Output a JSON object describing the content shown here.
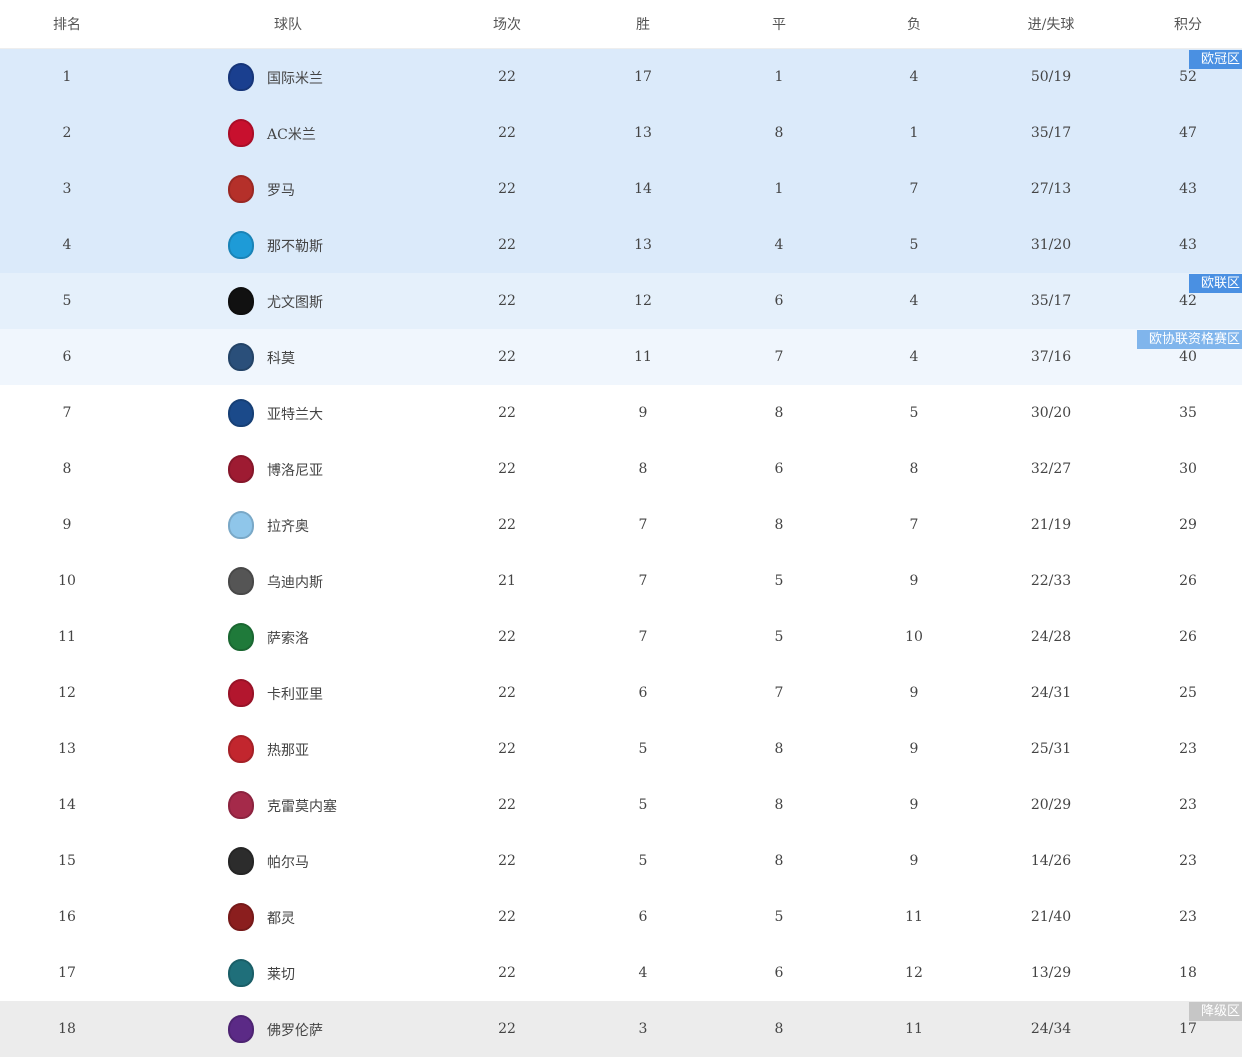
{
  "headers": [
    "排名",
    "球队",
    "场次",
    "胜",
    "平",
    "负",
    "进/失球",
    "积分"
  ],
  "zones": {
    "ucl": {
      "label": "欧冠区",
      "bg": "#dbeafa",
      "badge": "#4a90e2"
    },
    "uel": {
      "label": "欧联区",
      "bg": "#e5f0fb",
      "badge": "#4a90e2"
    },
    "uecl": {
      "label": "欧协联资格赛区",
      "bg": "#f0f6fd",
      "badge": "#80b5ec"
    },
    "rel": {
      "label": "降级区",
      "bg": "#ececec",
      "badge": "#c6c6c6"
    }
  },
  "rows": [
    {
      "rank": "1",
      "team": "国际米兰",
      "played": "22",
      "w": "17",
      "d": "1",
      "l": "4",
      "gf_ga": "50/19",
      "pts": "52",
      "zone": "ucl",
      "logo": "#1a3f8f"
    },
    {
      "rank": "2",
      "team": "AC米兰",
      "played": "22",
      "w": "13",
      "d": "8",
      "l": "1",
      "gf_ga": "35/17",
      "pts": "47",
      "zone": "ucl",
      "logo": "#c8102e"
    },
    {
      "rank": "3",
      "team": "罗马",
      "played": "22",
      "w": "14",
      "d": "1",
      "l": "7",
      "gf_ga": "27/13",
      "pts": "43",
      "zone": "ucl",
      "logo": "#b5302a"
    },
    {
      "rank": "4",
      "team": "那不勒斯",
      "played": "22",
      "w": "13",
      "d": "4",
      "l": "5",
      "gf_ga": "31/20",
      "pts": "43",
      "zone": "ucl",
      "logo": "#1e9bd7"
    },
    {
      "rank": "5",
      "team": "尤文图斯",
      "played": "22",
      "w": "12",
      "d": "6",
      "l": "4",
      "gf_ga": "35/17",
      "pts": "42",
      "zone": "uel",
      "logo": "#111111"
    },
    {
      "rank": "6",
      "team": "科莫",
      "played": "22",
      "w": "11",
      "d": "7",
      "l": "4",
      "gf_ga": "37/16",
      "pts": "40",
      "zone": "uecl",
      "logo": "#2a4f7a"
    },
    {
      "rank": "7",
      "team": "亚特兰大",
      "played": "22",
      "w": "9",
      "d": "8",
      "l": "5",
      "gf_ga": "30/20",
      "pts": "35",
      "logo": "#1b4a8a"
    },
    {
      "rank": "8",
      "team": "博洛尼亚",
      "played": "22",
      "w": "8",
      "d": "6",
      "l": "8",
      "gf_ga": "32/27",
      "pts": "30",
      "logo": "#9e1b32"
    },
    {
      "rank": "9",
      "team": "拉齐奥",
      "played": "22",
      "w": "7",
      "d": "8",
      "l": "7",
      "gf_ga": "21/19",
      "pts": "29",
      "logo": "#8fc6ea"
    },
    {
      "rank": "10",
      "team": "乌迪内斯",
      "played": "21",
      "w": "7",
      "d": "5",
      "l": "9",
      "gf_ga": "22/33",
      "pts": "26",
      "logo": "#555555"
    },
    {
      "rank": "11",
      "team": "萨索洛",
      "played": "22",
      "w": "7",
      "d": "5",
      "l": "10",
      "gf_ga": "24/28",
      "pts": "26",
      "logo": "#1f7a3a"
    },
    {
      "rank": "12",
      "team": "卡利亚里",
      "played": "22",
      "w": "6",
      "d": "7",
      "l": "9",
      "gf_ga": "24/31",
      "pts": "25",
      "logo": "#b3162e"
    },
    {
      "rank": "13",
      "team": "热那亚",
      "played": "22",
      "w": "5",
      "d": "8",
      "l": "9",
      "gf_ga": "25/31",
      "pts": "23",
      "logo": "#c2262e"
    },
    {
      "rank": "14",
      "team": "克雷莫内塞",
      "played": "22",
      "w": "5",
      "d": "8",
      "l": "9",
      "gf_ga": "20/29",
      "pts": "23",
      "logo": "#a52a4a"
    },
    {
      "rank": "15",
      "team": "帕尔马",
      "played": "22",
      "w": "5",
      "d": "8",
      "l": "9",
      "gf_ga": "14/26",
      "pts": "23",
      "logo": "#2c2c2c"
    },
    {
      "rank": "16",
      "team": "都灵",
      "played": "22",
      "w": "6",
      "d": "5",
      "l": "11",
      "gf_ga": "21/40",
      "pts": "23",
      "logo": "#8b1e1e"
    },
    {
      "rank": "17",
      "team": "莱切",
      "played": "22",
      "w": "4",
      "d": "6",
      "l": "12",
      "gf_ga": "13/29",
      "pts": "18",
      "logo": "#1f6f7a"
    },
    {
      "rank": "18",
      "team": "佛罗伦萨",
      "played": "22",
      "w": "3",
      "d": "8",
      "l": "11",
      "gf_ga": "24/34",
      "pts": "17",
      "zone": "rel",
      "logo": "#5b2a86"
    }
  ]
}
